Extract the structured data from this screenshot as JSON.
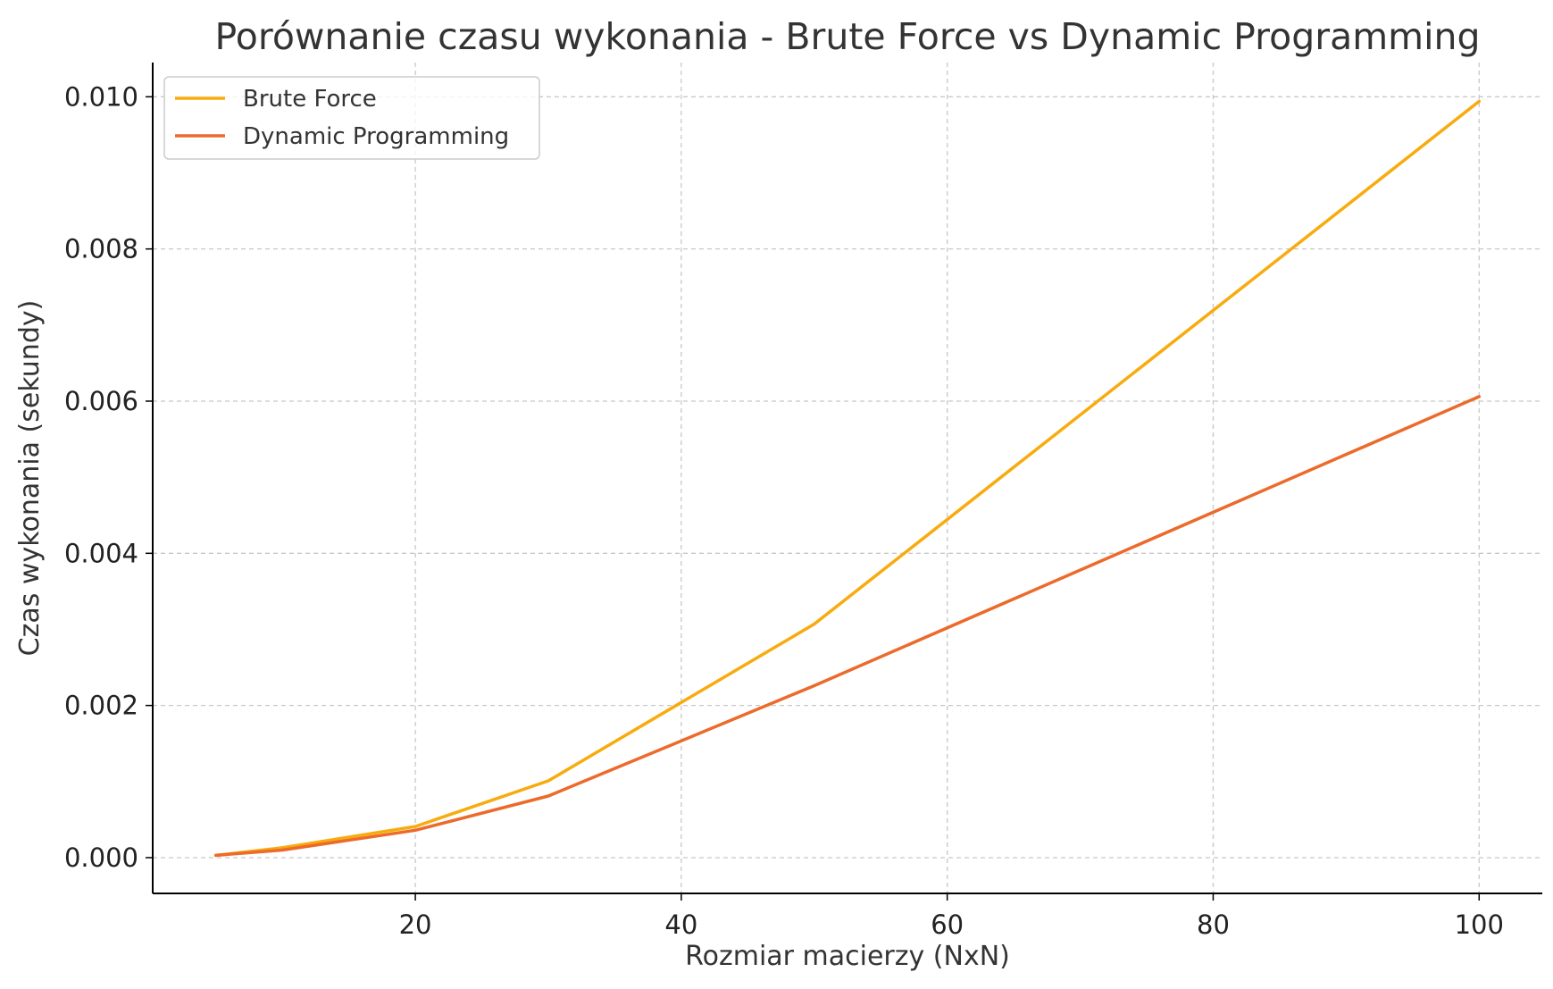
{
  "chart_data": {
    "type": "line",
    "title": "Porównanie czasu wykonania - Brute Force vs Dynamic Programming",
    "xlabel": "Rozmiar macierzy (NxN)",
    "ylabel": "Czas wykonania (sekundy)",
    "xlim": [
      0.25,
      104.75
    ],
    "ylim": [
      -0.00047,
      0.01045
    ],
    "xticks": [
      20,
      40,
      60,
      80,
      100
    ],
    "xtick_labels": [
      "20",
      "40",
      "60",
      "80",
      "100"
    ],
    "yticks": [
      0.0,
      0.002,
      0.004,
      0.006,
      0.008,
      0.01
    ],
    "ytick_labels": [
      "0.000",
      "0.002",
      "0.004",
      "0.006",
      "0.008",
      "0.010"
    ],
    "grid": true,
    "legend": "top-left",
    "series": [
      {
        "name": "Brute Force",
        "color": "#F8AB0E",
        "x": [
          5,
          10,
          20,
          30,
          50,
          100
        ],
        "y": [
          3e-05,
          0.00013,
          0.00041,
          0.00101,
          0.00307,
          0.00994
        ]
      },
      {
        "name": "Dynamic Programming",
        "color": "#EC6A2A",
        "x": [
          5,
          10,
          20,
          30,
          50,
          100
        ],
        "y": [
          3e-05,
          0.0001,
          0.00036,
          0.00081,
          0.00226,
          0.00606
        ]
      }
    ]
  }
}
